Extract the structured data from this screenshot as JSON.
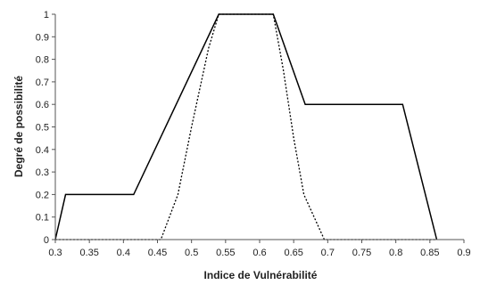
{
  "chart_data": {
    "type": "line",
    "xlabel": "Indice de Vulnérabilité",
    "ylabel": "Degré de possibilité",
    "xlim": [
      0.3,
      0.9
    ],
    "ylim": [
      0,
      1
    ],
    "xticks": [
      "0.3",
      "0.35",
      "0.4",
      "0.45",
      "0.5",
      "0.55",
      "0.6",
      "0.65",
      "0.7",
      "0.75",
      "0.8",
      "0.85",
      "0.9"
    ],
    "yticks": [
      "0",
      "0.1",
      "0.2",
      "0.3",
      "0.4",
      "0.5",
      "0.6",
      "0.7",
      "0.8",
      "0.9",
      "1"
    ],
    "grid": false,
    "series": [
      {
        "style": "solid",
        "color": "#000000",
        "x": [
          0.3,
          0.315,
          0.415,
          0.54,
          0.62,
          0.667,
          0.81,
          0.86
        ],
        "y": [
          0,
          0.2,
          0.2,
          1,
          1,
          0.6,
          0.6,
          0
        ]
      },
      {
        "style": "dotted",
        "color": "#000000",
        "x": [
          0.3,
          0.455,
          0.48,
          0.5,
          0.525,
          0.54,
          0.62,
          0.635,
          0.65,
          0.665,
          0.695,
          0.86
        ],
        "y": [
          0,
          0,
          0.2,
          0.5,
          0.85,
          1,
          1,
          0.75,
          0.45,
          0.2,
          0,
          0
        ]
      }
    ]
  }
}
